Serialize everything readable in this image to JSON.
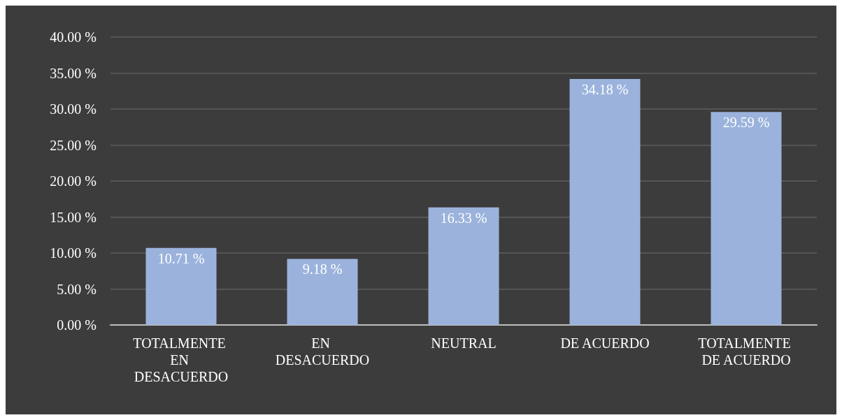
{
  "chart_data": {
    "type": "bar",
    "categories": [
      "TOTALMENTE EN DESACUERDO",
      "EN DESACUERDO",
      "NEUTRAL",
      "DE ACUERDO",
      "TOTALMENTE DE ACUERDO"
    ],
    "values": [
      10.71,
      9.18,
      16.33,
      34.18,
      29.59
    ],
    "value_labels": [
      "10.71 %",
      "9.18 %",
      "16.33 %",
      "34.18 %",
      "29.59 %"
    ],
    "color": "#9bb3dc",
    "ylim": [
      0,
      40
    ],
    "yticks": [
      {
        "value": 0,
        "label": "0.00 %"
      },
      {
        "value": 5,
        "label": "5.00 %"
      },
      {
        "value": 10,
        "label": "10.00 %"
      },
      {
        "value": 15,
        "label": "15.00 %"
      },
      {
        "value": 20,
        "label": "20.00 %"
      },
      {
        "value": 25,
        "label": "25.00 %"
      },
      {
        "value": 30,
        "label": "30.00 %"
      },
      {
        "value": 35,
        "label": "35.00 %"
      },
      {
        "value": 40,
        "label": "40.00 %"
      }
    ],
    "grid": true
  }
}
